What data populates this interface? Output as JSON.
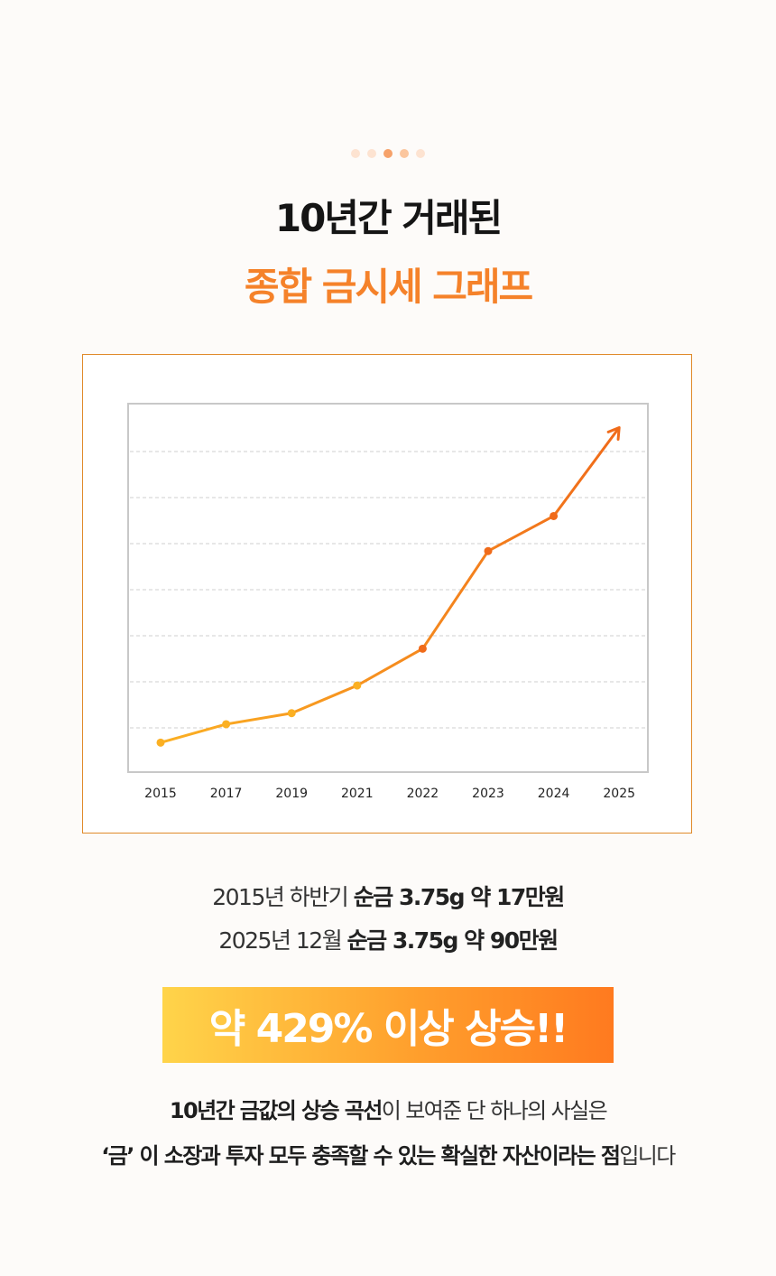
{
  "colors": {
    "accent": "#f5822a",
    "line_start": "#fbb023",
    "line_end": "#f06b1a",
    "dot_light": "#fde3d1",
    "dot_mid": "#fbc69e",
    "dot_dark": "#f6a26a",
    "grid": "#cfcfcf",
    "frame": "#e08a2a"
  },
  "indicator_dots": [
    "light",
    "light",
    "dark",
    "mid",
    "light"
  ],
  "heading": {
    "line1": "10년간 거래된",
    "line2": "종합 금시세 그래프"
  },
  "chart_data": {
    "type": "line",
    "categories": [
      "2015",
      "2017",
      "2019",
      "2021",
      "2022",
      "2023",
      "2024",
      "2025"
    ],
    "values": [
      0.08,
      0.13,
      0.16,
      0.235,
      0.335,
      0.6,
      0.695,
      0.935
    ],
    "ylim": [
      0,
      1
    ],
    "y_grid_lines": 7,
    "grid": true,
    "end_marker": "arrow",
    "title": "",
    "xlabel": "",
    "ylabel": ""
  },
  "captions": {
    "line1": {
      "prefix": "2015년 하반기 ",
      "bold": "순금 3.75g 약 17만원"
    },
    "line2": {
      "prefix": "2025년 12월 ",
      "bold": "순금 3.75g 약 90만원"
    }
  },
  "banner": "약 429% 이상 상승!!",
  "description": {
    "line1": {
      "bold": "10년간 금값의 상승 곡선",
      "rest": "이 보여준 단 하나의 사실은"
    },
    "line2": {
      "bold": "‘금’ 이 소장과 투자 모두 충족할 수 있는 확실한 자산이라는 점",
      "rest": "입니다"
    }
  }
}
